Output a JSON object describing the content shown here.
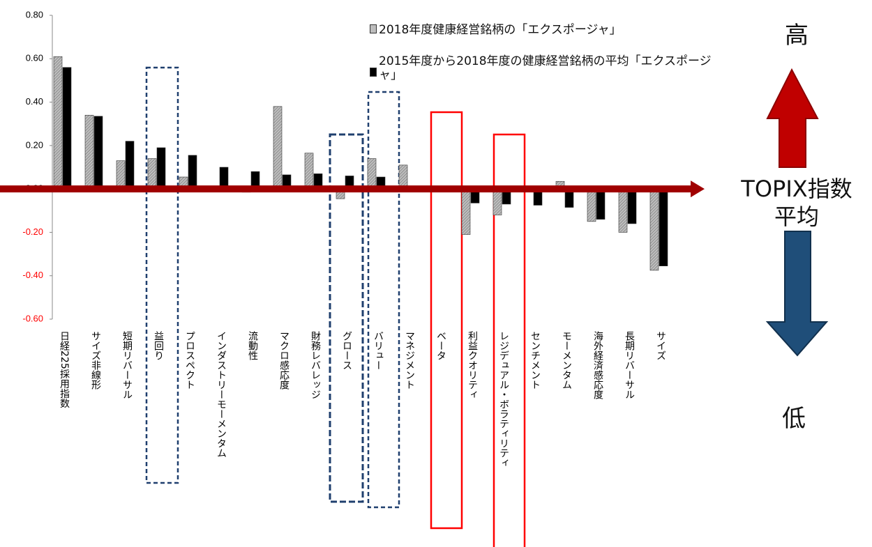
{
  "chart_data": {
    "type": "bar",
    "categories": [
      "日経225採用指数",
      "サイズ非線形",
      "短期リバーサル",
      "益回り",
      "プロスペクト",
      "インダストリーモーメンタム",
      "流動性",
      "マクロ感応度",
      "財務レバレッジ",
      "グロース",
      "バリュー",
      "マネジメント",
      "ベータ",
      "利益クオリティ",
      "レジデュアル・ボラティリティ",
      "センチメント",
      "モーメンタム",
      "海外経済感応度",
      "長期リバーサル",
      "サイズ"
    ],
    "series": [
      {
        "name": "2018年度健康経営銘柄の「エクスポージャ」",
        "color": "#bdbdbd",
        "values": [
          0.61,
          0.34,
          0.13,
          0.14,
          0.055,
          null,
          -0.015,
          0.38,
          0.165,
          -0.045,
          0.14,
          0.11,
          null,
          -0.21,
          -0.12,
          -0.005,
          0.035,
          -0.15,
          -0.2,
          -0.375
        ]
      },
      {
        "name": "2015年度から2018年度の健康経営銘柄の平均「エクスポージャ」",
        "color": "#000000",
        "values": [
          0.56,
          0.335,
          0.22,
          0.19,
          0.155,
          0.1,
          0.08,
          0.065,
          0.07,
          0.06,
          0.055,
          null,
          null,
          -0.065,
          -0.07,
          -0.075,
          -0.085,
          -0.14,
          -0.16,
          -0.355
        ]
      }
    ],
    "ylim": [
      -0.6,
      0.8
    ],
    "yticks": [
      {
        "value": 0.8,
        "label": "0.80"
      },
      {
        "value": 0.6,
        "label": "0.60"
      },
      {
        "value": 0.4,
        "label": "0.40"
      },
      {
        "value": 0.2,
        "label": "0.20"
      },
      {
        "value": 0,
        "label": "0.00"
      },
      {
        "value": -0.2,
        "label": "-0.20"
      },
      {
        "value": -0.4,
        "label": "-0.40"
      },
      {
        "value": -0.6,
        "label": "-0.60"
      }
    ],
    "negative_tick_color": "#ff0000",
    "annotations": [
      "高",
      "TOPIX指数",
      "平均",
      "低"
    ]
  }
}
